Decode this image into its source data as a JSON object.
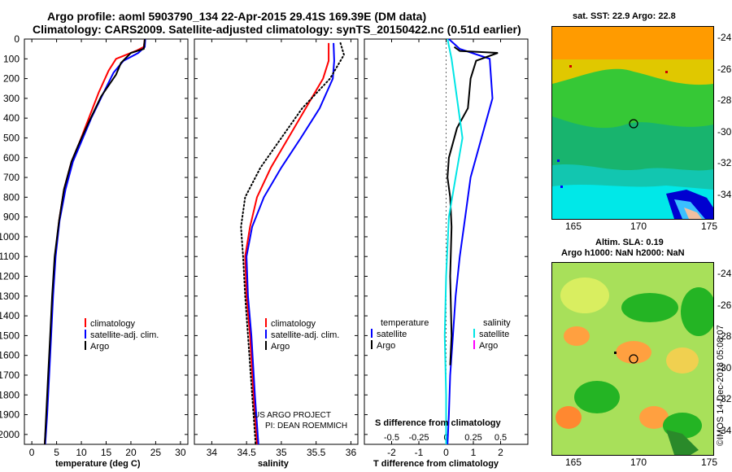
{
  "header": {
    "line1": "Argo profile: aoml 5903790_134 22-Apr-2015 29.41S 169.39E (DM data)",
    "line2": "Climatology: CARS2009. Satellite-adjusted climatology: synTS_20150422.nc (0.51d earlier)"
  },
  "colors": {
    "climatology": "#ff0000",
    "satellite": "#0000ff",
    "argo": "#000000",
    "sat_salinity": "#00e5e5",
    "argo_salinity": "#ff00ff"
  },
  "panels": {
    "temperature": {
      "xlabel": "temperature (deg C)",
      "legend": [
        {
          "label": "climatology",
          "color": "#ff0000"
        },
        {
          "label": "satellite-adj. clim.",
          "color": "#0000ff"
        },
        {
          "label": "Argo",
          "color": "#000000"
        }
      ]
    },
    "salinity": {
      "xlabel": "salinity",
      "legend": [
        {
          "label": "climatology",
          "color": "#ff0000"
        },
        {
          "label": "satellite-adj. clim.",
          "color": "#0000ff"
        },
        {
          "label": "Argo",
          "color": "#000000"
        }
      ],
      "note1": "US ARGO PROJECT",
      "note2": "PI: DEAN ROEMMICH"
    },
    "difference": {
      "xlabel": "T difference from climatology",
      "toplabel": "S difference from climatology",
      "legend_left": {
        "title": "temperature",
        "items": [
          {
            "label": "satellite",
            "color": "#0000ff"
          },
          {
            "label": "Argo",
            "color": "#000000"
          }
        ]
      },
      "legend_right": {
        "title": "salinity",
        "items": [
          {
            "label": "satellite",
            "color": "#00e5e5"
          },
          {
            "label": "Argo",
            "color": "#ff00ff"
          }
        ]
      }
    }
  },
  "maps": {
    "sst": {
      "title": "sat. SST: 22.9  Argo: 22.8",
      "lon_ticks": [
        "165",
        "170",
        "175"
      ],
      "lat_ticks": [
        "-24",
        "-26",
        "-28",
        "-30",
        "-32",
        "-34"
      ]
    },
    "sla": {
      "title1": "Altim. SLA: 0.19",
      "title2": "Argo h1000: NaN h2000: NaN",
      "lon_ticks": [
        "165",
        "170",
        "175"
      ],
      "lat_ticks": [
        "-24",
        "-26",
        "-28",
        "-30",
        "-32",
        "-34"
      ]
    }
  },
  "stamp": "©IMOS 14-Dec-2018 05:08:07",
  "chart_data": [
    {
      "type": "line",
      "ylabel": "",
      "ylim": [
        0,
        2050
      ],
      "y_inverted": true,
      "yticks": [
        0,
        100,
        200,
        300,
        400,
        500,
        600,
        700,
        800,
        900,
        1000,
        1100,
        1200,
        1300,
        1400,
        1500,
        1600,
        1700,
        1800,
        1900,
        2000
      ],
      "xlim": [
        -1.5,
        31.5
      ],
      "xticks": [
        0,
        5,
        10,
        15,
        20,
        25,
        30
      ],
      "xlabel": "temperature (deg C)",
      "series": [
        {
          "name": "climatology",
          "color": "#ff0000",
          "points": [
            [
              22.8,
              0
            ],
            [
              22.6,
              40
            ],
            [
              21,
              60
            ],
            [
              17,
              100
            ],
            [
              15.5,
              160
            ],
            [
              13.5,
              270
            ],
            [
              11.5,
              400
            ],
            [
              9.5,
              530
            ],
            [
              8,
              620
            ],
            [
              6.5,
              760
            ],
            [
              5.5,
              920
            ],
            [
              4.7,
              1100
            ],
            [
              4.2,
              1300
            ],
            [
              3.8,
              1500
            ],
            [
              3.4,
              1700
            ],
            [
              3.0,
              1900
            ],
            [
              2.6,
              2050
            ]
          ]
        },
        {
          "name": "satellite-adj. clim.",
          "color": "#0000ff",
          "points": [
            [
              22.9,
              0
            ],
            [
              22.8,
              40
            ],
            [
              21.5,
              70
            ],
            [
              18.5,
              110
            ],
            [
              16.5,
              170
            ],
            [
              14.5,
              270
            ],
            [
              12,
              400
            ],
            [
              10,
              520
            ],
            [
              8.3,
              620
            ],
            [
              6.8,
              760
            ],
            [
              5.6,
              920
            ],
            [
              4.8,
              1100
            ],
            [
              4.3,
              1300
            ],
            [
              3.9,
              1500
            ],
            [
              3.5,
              1700
            ],
            [
              3.1,
              1900
            ],
            [
              2.7,
              2050
            ]
          ]
        },
        {
          "name": "Argo",
          "color": "#000000",
          "points": [
            [
              22.8,
              0
            ],
            [
              22.6,
              50
            ],
            [
              20,
              70
            ],
            [
              18,
              120
            ],
            [
              17,
              180
            ],
            [
              14,
              290
            ],
            [
              11.5,
              420
            ],
            [
              9.5,
              530
            ],
            [
              8,
              620
            ],
            [
              6.5,
              760
            ],
            [
              5.5,
              920
            ],
            [
              4.6,
              1100
            ],
            [
              4.1,
              1300
            ],
            [
              3.7,
              1500
            ],
            [
              3.3,
              1700
            ],
            [
              2.9,
              1900
            ],
            [
              2.6,
              2050
            ]
          ]
        }
      ]
    },
    {
      "type": "line",
      "ylim": [
        0,
        2050
      ],
      "y_inverted": true,
      "xlim": [
        33.75,
        36.1
      ],
      "xticks": [
        34,
        34.5,
        35,
        35.5,
        36
      ],
      "xlabel": "salinity",
      "series": [
        {
          "name": "climatology",
          "color": "#ff0000",
          "points": [
            [
              35.68,
              20
            ],
            [
              35.68,
              110
            ],
            [
              35.6,
              200
            ],
            [
              35.35,
              350
            ],
            [
              35.1,
              500
            ],
            [
              34.85,
              650
            ],
            [
              34.65,
              800
            ],
            [
              34.55,
              950
            ],
            [
              34.48,
              1100
            ],
            [
              34.5,
              1300
            ],
            [
              34.55,
              1500
            ],
            [
              34.6,
              1800
            ],
            [
              34.65,
              2050
            ]
          ]
        },
        {
          "name": "satellite-adj. clim.",
          "color": "#0000ff",
          "points": [
            [
              35.75,
              20
            ],
            [
              35.76,
              110
            ],
            [
              35.74,
              200
            ],
            [
              35.55,
              350
            ],
            [
              35.28,
              500
            ],
            [
              35,
              650
            ],
            [
              34.75,
              800
            ],
            [
              34.58,
              950
            ],
            [
              34.5,
              1100
            ],
            [
              34.52,
              1300
            ],
            [
              34.57,
              1500
            ],
            [
              34.62,
              1800
            ],
            [
              34.67,
              2050
            ]
          ]
        },
        {
          "name": "Argo",
          "color": "#000000",
          "dotted": true,
          "points": [
            [
              35.85,
              20
            ],
            [
              35.9,
              80
            ],
            [
              35.7,
              200
            ],
            [
              35.3,
              350
            ],
            [
              35,
              500
            ],
            [
              34.7,
              650
            ],
            [
              34.48,
              800
            ],
            [
              34.42,
              950
            ],
            [
              34.45,
              1100
            ],
            [
              34.48,
              1300
            ],
            [
              34.52,
              1500
            ],
            [
              34.58,
              1800
            ],
            [
              34.63,
              2050
            ]
          ]
        }
      ]
    },
    {
      "type": "line",
      "ylim": [
        0,
        2050
      ],
      "y_inverted": true,
      "xlim": [
        -3.0,
        3.0
      ],
      "xticks": [
        -2,
        -1,
        0,
        1,
        2
      ],
      "xlabel": "T difference from climatology",
      "top_ticks": [
        "-0.5",
        "-0.25",
        "0",
        "0.25",
        "0.5"
      ],
      "toplabel": "S difference from climatology",
      "series": [
        {
          "name": "satellite",
          "quantity": "temperature",
          "color": "#0000ff",
          "points": [
            [
              0.1,
              0
            ],
            [
              0.5,
              50
            ],
            [
              1.6,
              100
            ],
            [
              1.7,
              300
            ],
            [
              1.3,
              500
            ],
            [
              0.9,
              700
            ],
            [
              0.7,
              900
            ],
            [
              0.5,
              1100
            ],
            [
              0.35,
              1300
            ],
            [
              0.25,
              1500
            ],
            [
              0.15,
              1700
            ],
            [
              0.1,
              1900
            ],
            [
              0.05,
              2050
            ]
          ]
        },
        {
          "name": "Argo",
          "quantity": "temperature",
          "color": "#000000",
          "points": [
            [
              0.3,
              40
            ],
            [
              0.5,
              60
            ],
            [
              1.9,
              70
            ],
            [
              1.1,
              110
            ],
            [
              0.9,
              200
            ],
            [
              0.8,
              350
            ],
            [
              0.4,
              450
            ],
            [
              0.1,
              600
            ],
            [
              0.05,
              700
            ],
            [
              0.15,
              800
            ],
            [
              0.2,
              950
            ],
            [
              0.15,
              1200
            ],
            [
              0.2,
              1500
            ],
            [
              0.15,
              1650
            ]
          ]
        },
        {
          "name": "satellite",
          "quantity": "salinity",
          "color": "#00e5e5",
          "points": [
            [
              0.05,
              0
            ],
            [
              0.2,
              100
            ],
            [
              0.4,
              300
            ],
            [
              0.6,
              500
            ],
            [
              0.35,
              700
            ],
            [
              0.1,
              900
            ],
            [
              0.0,
              1200
            ],
            [
              -0.05,
              1500
            ],
            [
              0.0,
              1800
            ],
            [
              0.0,
              2050
            ]
          ]
        }
      ]
    }
  ]
}
